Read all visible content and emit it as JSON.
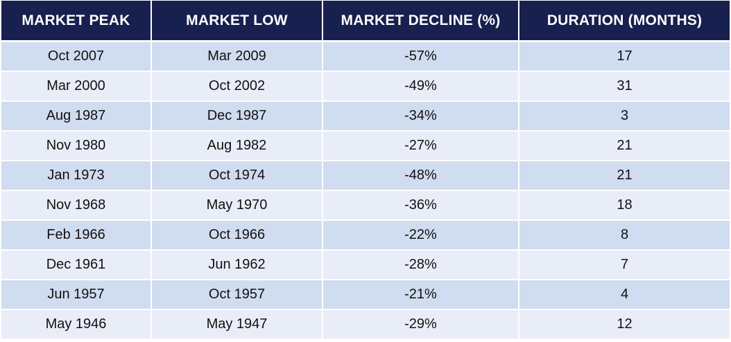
{
  "chart_data": {
    "type": "table",
    "columns": [
      "MARKET PEAK",
      "MARKET LOW",
      "MARKET DECLINE (%)",
      "DURATION (MONTHS)"
    ],
    "rows": [
      [
        "Oct 2007",
        "Mar 2009",
        "-57%",
        "17"
      ],
      [
        "Mar 2000",
        "Oct 2002",
        "-49%",
        "31"
      ],
      [
        "Aug 1987",
        "Dec 1987",
        "-34%",
        "3"
      ],
      [
        "Nov 1980",
        "Aug 1982",
        "-27%",
        "21"
      ],
      [
        "Jan 1973",
        "Oct 1974",
        "-48%",
        "21"
      ],
      [
        "Nov 1968",
        "May 1970",
        "-36%",
        "18"
      ],
      [
        "Feb 1966",
        "Oct 1966",
        "-22%",
        "8"
      ],
      [
        "Dec 1961",
        "Jun 1962",
        "-28%",
        "7"
      ],
      [
        "Jun 1957",
        "Oct 1957",
        "-21%",
        "4"
      ],
      [
        "May 1946",
        "May 1947",
        "-29%",
        "12"
      ]
    ]
  },
  "colors": {
    "header_bg": "#17204f",
    "header_text": "#ffffff",
    "row_odd_bg": "#d0dcef",
    "row_even_bg": "#e8edf7",
    "cell_text": "#111111"
  }
}
